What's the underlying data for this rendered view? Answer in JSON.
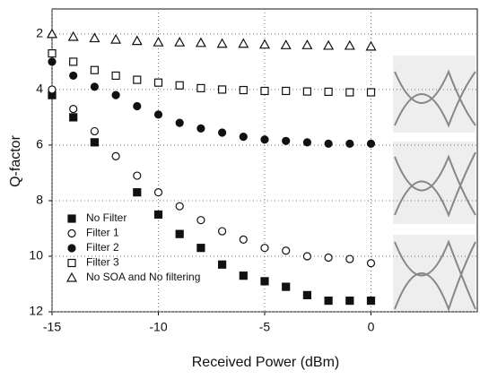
{
  "chart_data": {
    "type": "scatter",
    "x_label": "Received Power (dBm)",
    "y_label": "Q-factor",
    "x": [
      -15,
      -14,
      -13,
      -12,
      -11,
      -10,
      -9,
      -8,
      -7,
      -6,
      -5,
      -4,
      -3,
      -2,
      -1,
      0
    ],
    "series": [
      {
        "name": "No Filter",
        "color": "#111111",
        "marker": "square-filled",
        "values": [
          4.2,
          5.0,
          5.9,
          null,
          7.7,
          8.5,
          9.2,
          9.7,
          10.3,
          10.7,
          10.9,
          11.1,
          11.4,
          11.6,
          11.6,
          11.6
        ]
      },
      {
        "name": "Filter 1",
        "color": "#111111",
        "marker": "circle-open",
        "values": [
          4.0,
          4.7,
          5.5,
          6.4,
          7.1,
          7.7,
          8.2,
          8.7,
          9.1,
          9.4,
          9.7,
          9.8,
          10.0,
          10.05,
          10.1,
          10.25
        ]
      },
      {
        "name": "Filter 2",
        "color": "#111111",
        "marker": "circle-filled",
        "values": [
          3.0,
          3.5,
          3.9,
          4.2,
          4.6,
          4.9,
          5.2,
          5.4,
          5.55,
          5.7,
          5.8,
          5.85,
          5.9,
          5.95,
          5.95,
          5.95
        ]
      },
      {
        "name": "Filter 3",
        "color": "#111111",
        "marker": "square-open",
        "values": [
          2.7,
          3.0,
          3.3,
          3.5,
          3.65,
          3.75,
          3.85,
          3.95,
          4.0,
          4.02,
          4.05,
          4.05,
          4.07,
          4.08,
          4.1,
          4.1
        ]
      },
      {
        "name": "No SOA and No filtering",
        "color": "#111111",
        "marker": "triangle-open",
        "values": [
          2.0,
          2.1,
          2.15,
          2.2,
          2.25,
          2.3,
          2.3,
          2.32,
          2.35,
          2.35,
          2.38,
          2.4,
          2.4,
          2.42,
          2.42,
          2.45
        ]
      }
    ],
    "xlim": [
      -15,
      5
    ],
    "ylim": [
      1.1,
      12
    ],
    "y_reversed": true,
    "xticks": [
      -15,
      -10,
      -5,
      0
    ],
    "yticks": [
      2,
      4,
      6,
      8,
      10,
      12
    ],
    "grid": true,
    "legend": "lower left"
  }
}
